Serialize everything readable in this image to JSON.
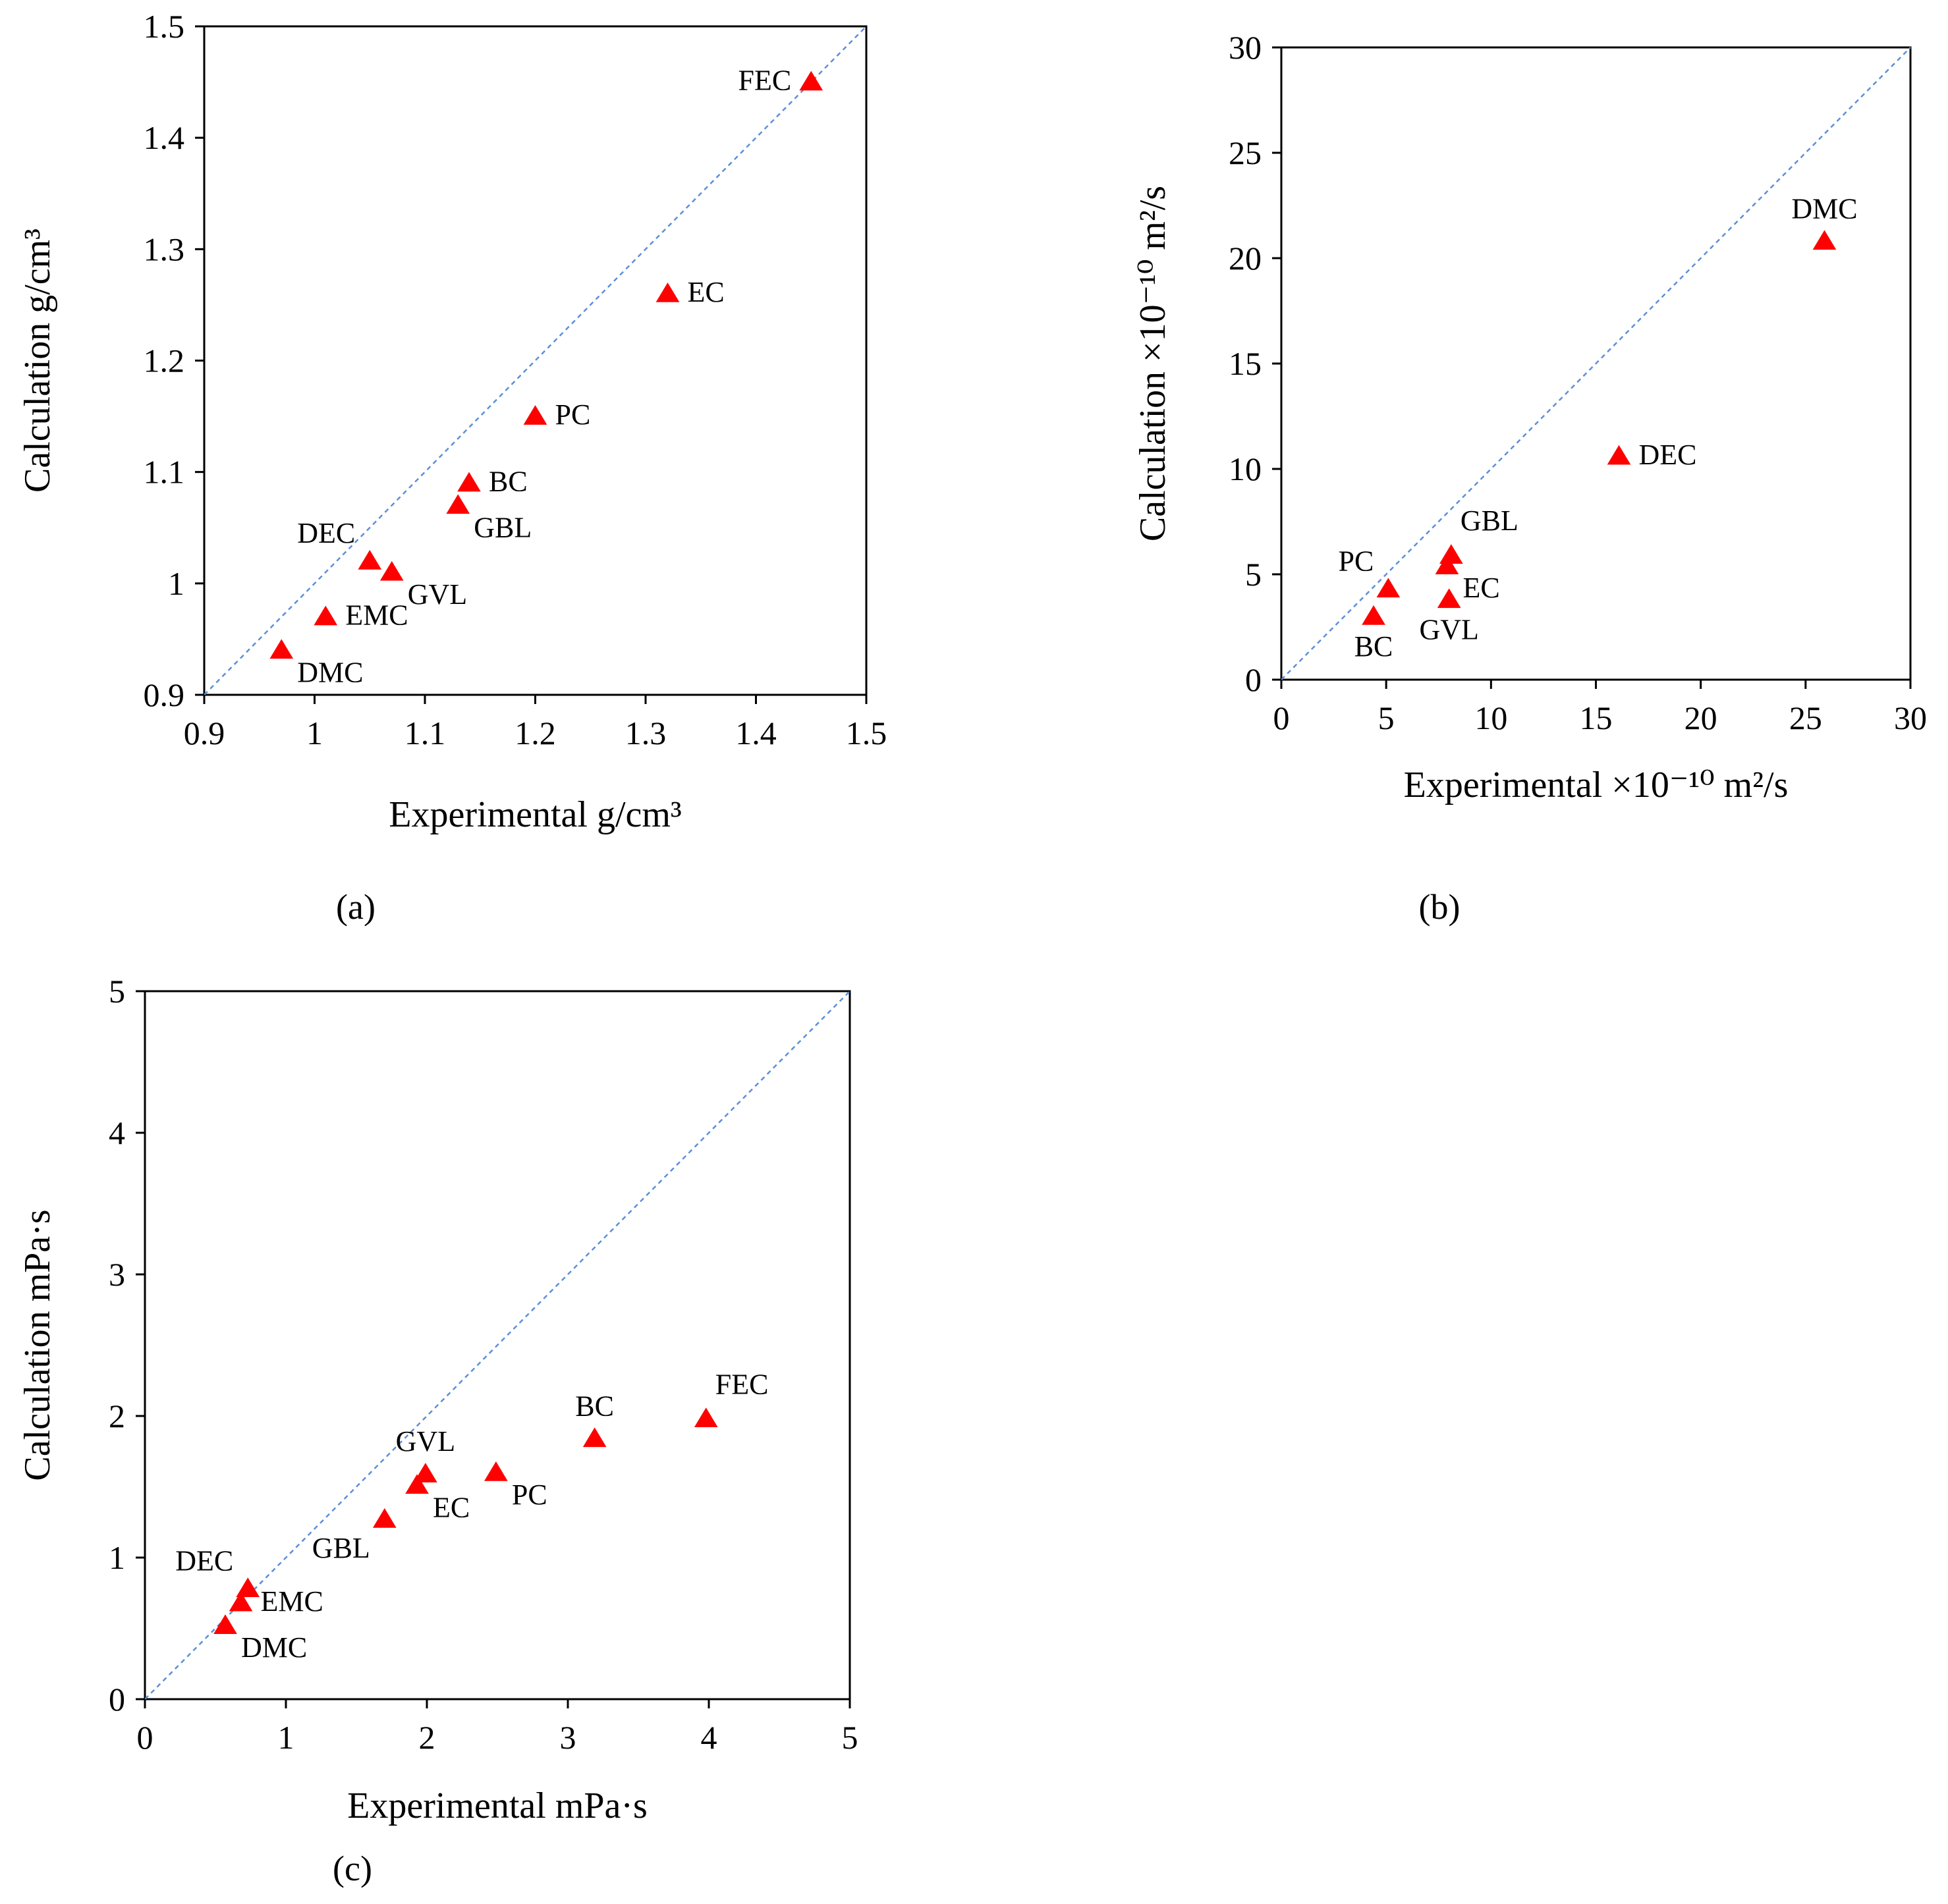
{
  "figure": {
    "marker_color": "#ff0000",
    "reference_line_color": "#5b8fd8",
    "captions": {
      "a": "(a)",
      "b": "(b)",
      "c": "(c)"
    }
  },
  "chart_data": [
    {
      "id": "a",
      "type": "scatter",
      "panel_label": "(a)",
      "xlabel": "Experimental g/cm³",
      "ylabel": "Calculation g/cm³",
      "xlim": [
        0.9,
        1.5
      ],
      "ylim": [
        0.9,
        1.5
      ],
      "xticks": [
        "0.9",
        "1",
        "1.1",
        "1.2",
        "1.3",
        "1.4",
        "1.5"
      ],
      "yticks": [
        "0.9",
        "1",
        "1.1",
        "1.2",
        "1.3",
        "1.4",
        "1.5"
      ],
      "reference_line": "y = x",
      "points": [
        {
          "label": "FEC",
          "x": 1.45,
          "y": 1.45,
          "pos": "left"
        },
        {
          "label": "EC",
          "x": 1.32,
          "y": 1.26,
          "pos": "right"
        },
        {
          "label": "PC",
          "x": 1.2,
          "y": 1.15,
          "pos": "right"
        },
        {
          "label": "BC",
          "x": 1.14,
          "y": 1.09,
          "pos": "right"
        },
        {
          "label": "GBL",
          "x": 1.13,
          "y": 1.07,
          "pos": "below-right"
        },
        {
          "label": "DEC",
          "x": 1.05,
          "y": 1.02,
          "pos": "above-left"
        },
        {
          "label": "GVL",
          "x": 1.07,
          "y": 1.01,
          "pos": "below-right"
        },
        {
          "label": "EMC",
          "x": 1.01,
          "y": 0.97,
          "pos": "right"
        },
        {
          "label": "DMC",
          "x": 0.97,
          "y": 0.94,
          "pos": "below-right"
        }
      ]
    },
    {
      "id": "b",
      "type": "scatter",
      "panel_label": "(b)",
      "xlabel": "Experimental ×10⁻¹⁰ m²/s",
      "ylabel": "Calculation ×10⁻¹⁰ m²/s",
      "xlim": [
        0,
        30
      ],
      "ylim": [
        0,
        30
      ],
      "xticks": [
        "0",
        "5",
        "10",
        "15",
        "20",
        "25",
        "30"
      ],
      "yticks": [
        "0",
        "5",
        "10",
        "15",
        "20",
        "25",
        "30"
      ],
      "reference_line": "y = x",
      "points": [
        {
          "label": "DMC",
          "x": 25.9,
          "y": 20.8,
          "pos": "above"
        },
        {
          "label": "DEC",
          "x": 16.1,
          "y": 10.6,
          "pos": "right"
        },
        {
          "label": "GBL",
          "x": 8.1,
          "y": 5.9,
          "pos": "above-right"
        },
        {
          "label": "EC",
          "x": 7.9,
          "y": 5.4,
          "pos": "below-right"
        },
        {
          "label": "PC",
          "x": 5.1,
          "y": 4.3,
          "pos": "above-left"
        },
        {
          "label": "GVL",
          "x": 8.0,
          "y": 3.8,
          "pos": "below"
        },
        {
          "label": "BC",
          "x": 4.4,
          "y": 3.0,
          "pos": "below"
        }
      ]
    },
    {
      "id": "c",
      "type": "scatter",
      "panel_label": "(c)",
      "xlabel": "Experimental mPa·s",
      "ylabel": "Calculation mPa·s",
      "xlim": [
        0,
        5
      ],
      "ylim": [
        0,
        5
      ],
      "xticks": [
        "0",
        "1",
        "2",
        "3",
        "4",
        "5"
      ],
      "yticks": [
        "0",
        "1",
        "2",
        "3",
        "4",
        "5"
      ],
      "reference_line": "y = x",
      "points": [
        {
          "label": "FEC",
          "x": 3.98,
          "y": 1.98,
          "pos": "above-right"
        },
        {
          "label": "BC",
          "x": 3.19,
          "y": 1.84,
          "pos": "above"
        },
        {
          "label": "GVL",
          "x": 1.99,
          "y": 1.59,
          "pos": "above"
        },
        {
          "label": "PC",
          "x": 2.49,
          "y": 1.6,
          "pos": "below-right"
        },
        {
          "label": "EC",
          "x": 1.93,
          "y": 1.51,
          "pos": "below-right"
        },
        {
          "label": "GBL",
          "x": 1.7,
          "y": 1.27,
          "pos": "below-left"
        },
        {
          "label": "DEC",
          "x": 0.73,
          "y": 0.78,
          "pos": "above-left"
        },
        {
          "label": "EMC",
          "x": 0.68,
          "y": 0.68,
          "pos": "right"
        },
        {
          "label": "DMC",
          "x": 0.57,
          "y": 0.52,
          "pos": "below-right"
        }
      ]
    }
  ]
}
